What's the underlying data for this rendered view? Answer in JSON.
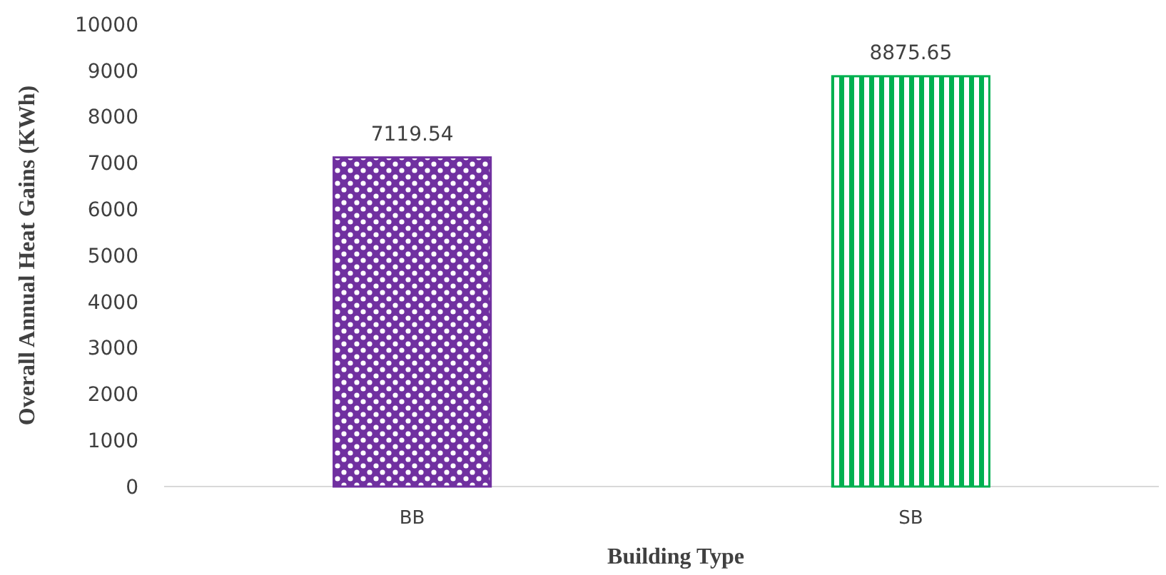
{
  "chart_data": {
    "type": "bar",
    "xlabel": "Building Type",
    "ylabel": "Overall Annual Heat Gains (KWh)",
    "categories": [
      "BB",
      "SB"
    ],
    "values": [
      7119.54,
      8875.65
    ],
    "colors": [
      "#7030a0",
      "#00b050"
    ],
    "ylim": [
      0,
      10000
    ],
    "yticks": [
      0,
      1000,
      2000,
      3000,
      4000,
      5000,
      6000,
      7000,
      8000,
      9000,
      10000
    ],
    "grid": false,
    "data_labels": true
  }
}
